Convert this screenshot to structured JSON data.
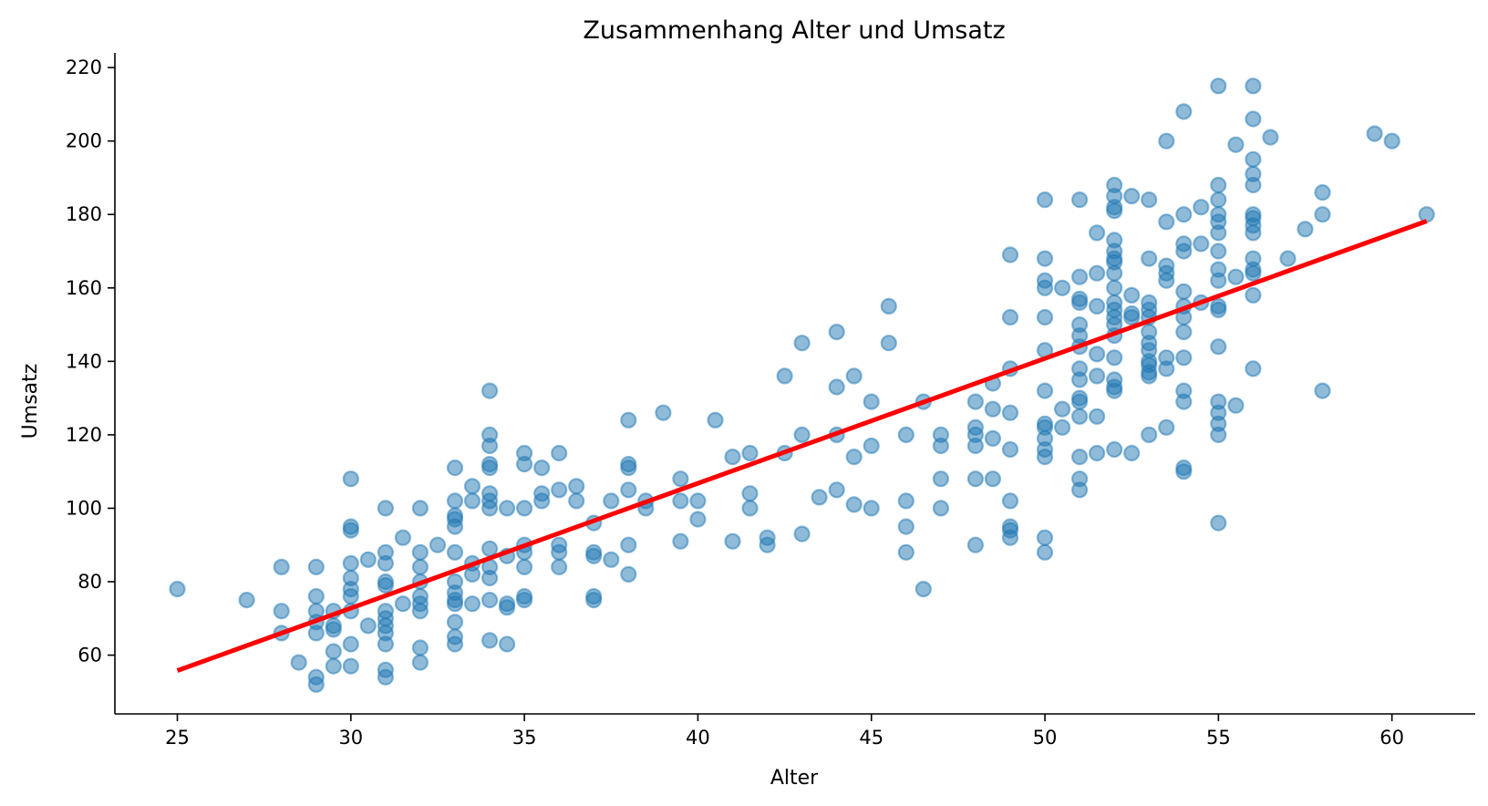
{
  "chart_data": {
    "type": "scatter",
    "title": "Zusammenhang Alter und Umsatz",
    "xlabel": "Alter",
    "ylabel": "Umsatz",
    "xlim": [
      23.2,
      62.4
    ],
    "ylim": [
      44,
      224
    ],
    "xticks": [
      25,
      30,
      35,
      40,
      45,
      50,
      55,
      60
    ],
    "yticks": [
      60,
      80,
      100,
      120,
      140,
      160,
      180,
      200,
      220
    ],
    "grid": false,
    "legend": "none",
    "colors": {
      "points": "#1f77b4",
      "line": "#ff0000"
    },
    "series": [
      {
        "kind": "scatter",
        "points": [
          [
            25,
            78
          ],
          [
            27,
            75
          ],
          [
            28,
            84
          ],
          [
            28,
            72
          ],
          [
            28,
            66
          ],
          [
            28.5,
            58
          ],
          [
            29,
            84
          ],
          [
            29,
            76
          ],
          [
            29,
            72
          ],
          [
            29,
            69
          ],
          [
            29,
            66
          ],
          [
            29,
            54
          ],
          [
            29,
            52
          ],
          [
            29.5,
            72
          ],
          [
            29.5,
            68
          ],
          [
            29.5,
            67
          ],
          [
            29.5,
            61
          ],
          [
            29.5,
            57
          ],
          [
            30,
            108
          ],
          [
            30,
            95
          ],
          [
            30,
            94
          ],
          [
            30,
            85
          ],
          [
            30,
            81
          ],
          [
            30,
            78
          ],
          [
            30,
            76
          ],
          [
            30,
            72
          ],
          [
            30,
            63
          ],
          [
            30,
            57
          ],
          [
            30.5,
            86
          ],
          [
            30.5,
            68
          ],
          [
            31,
            100
          ],
          [
            31,
            88
          ],
          [
            31,
            85
          ],
          [
            31,
            80
          ],
          [
            31,
            79
          ],
          [
            31,
            72
          ],
          [
            31,
            70
          ],
          [
            31,
            68
          ],
          [
            31,
            66
          ],
          [
            31,
            63
          ],
          [
            31,
            56
          ],
          [
            31,
            54
          ],
          [
            31.5,
            92
          ],
          [
            31.5,
            74
          ],
          [
            32,
            100
          ],
          [
            32,
            88
          ],
          [
            32,
            84
          ],
          [
            32,
            80
          ],
          [
            32,
            76
          ],
          [
            32,
            74
          ],
          [
            32,
            72
          ],
          [
            32,
            62
          ],
          [
            32,
            58
          ],
          [
            32.5,
            90
          ],
          [
            33,
            111
          ],
          [
            33,
            102
          ],
          [
            33,
            98
          ],
          [
            33,
            97
          ],
          [
            33,
            95
          ],
          [
            33,
            88
          ],
          [
            33,
            80
          ],
          [
            33,
            77
          ],
          [
            33,
            75
          ],
          [
            33,
            74
          ],
          [
            33,
            69
          ],
          [
            33,
            65
          ],
          [
            33,
            63
          ],
          [
            33.5,
            106
          ],
          [
            33.5,
            102
          ],
          [
            33.5,
            85
          ],
          [
            33.5,
            82
          ],
          [
            33.5,
            74
          ],
          [
            34,
            132
          ],
          [
            34,
            120
          ],
          [
            34,
            117
          ],
          [
            34,
            112
          ],
          [
            34,
            111
          ],
          [
            34,
            104
          ],
          [
            34,
            102
          ],
          [
            34,
            100
          ],
          [
            34,
            89
          ],
          [
            34,
            84
          ],
          [
            34,
            81
          ],
          [
            34,
            75
          ],
          [
            34,
            64
          ],
          [
            34.5,
            100
          ],
          [
            34.5,
            87
          ],
          [
            34.5,
            74
          ],
          [
            34.5,
            73
          ],
          [
            34.5,
            63
          ],
          [
            35,
            115
          ],
          [
            35,
            112
          ],
          [
            35,
            100
          ],
          [
            35,
            90
          ],
          [
            35,
            88
          ],
          [
            35,
            84
          ],
          [
            35,
            76
          ],
          [
            35,
            75
          ],
          [
            35.5,
            111
          ],
          [
            35.5,
            104
          ],
          [
            35.5,
            102
          ],
          [
            36,
            115
          ],
          [
            36,
            105
          ],
          [
            36,
            90
          ],
          [
            36,
            88
          ],
          [
            36,
            84
          ],
          [
            36.5,
            106
          ],
          [
            36.5,
            102
          ],
          [
            37,
            96
          ],
          [
            37,
            88
          ],
          [
            37,
            87
          ],
          [
            37,
            76
          ],
          [
            37,
            75
          ],
          [
            37.5,
            102
          ],
          [
            37.5,
            86
          ],
          [
            38,
            124
          ],
          [
            38,
            112
          ],
          [
            38,
            111
          ],
          [
            38,
            105
          ],
          [
            38,
            90
          ],
          [
            38,
            82
          ],
          [
            38.5,
            102
          ],
          [
            38.5,
            100
          ],
          [
            39,
            126
          ],
          [
            39.5,
            108
          ],
          [
            39.5,
            102
          ],
          [
            39.5,
            91
          ],
          [
            40,
            102
          ],
          [
            40,
            97
          ],
          [
            40.5,
            124
          ],
          [
            41,
            114
          ],
          [
            41,
            91
          ],
          [
            41.5,
            115
          ],
          [
            41.5,
            104
          ],
          [
            41.5,
            100
          ],
          [
            42,
            92
          ],
          [
            42,
            90
          ],
          [
            42.5,
            136
          ],
          [
            42.5,
            115
          ],
          [
            43,
            145
          ],
          [
            43,
            120
          ],
          [
            43,
            93
          ],
          [
            43.5,
            103
          ],
          [
            44,
            148
          ],
          [
            44,
            133
          ],
          [
            44,
            120
          ],
          [
            44,
            105
          ],
          [
            44.5,
            136
          ],
          [
            44.5,
            114
          ],
          [
            44.5,
            101
          ],
          [
            45,
            129
          ],
          [
            45,
            117
          ],
          [
            45,
            100
          ],
          [
            45.5,
            155
          ],
          [
            45.5,
            145
          ],
          [
            46,
            120
          ],
          [
            46,
            102
          ],
          [
            46,
            95
          ],
          [
            46,
            88
          ],
          [
            46.5,
            129
          ],
          [
            46.5,
            78
          ],
          [
            47,
            120
          ],
          [
            47,
            117
          ],
          [
            47,
            108
          ],
          [
            47,
            100
          ],
          [
            48,
            129
          ],
          [
            48,
            122
          ],
          [
            48,
            120
          ],
          [
            48,
            117
          ],
          [
            48,
            108
          ],
          [
            48,
            90
          ],
          [
            48.5,
            134
          ],
          [
            48.5,
            127
          ],
          [
            48.5,
            119
          ],
          [
            48.5,
            108
          ],
          [
            49,
            169
          ],
          [
            49,
            152
          ],
          [
            49,
            138
          ],
          [
            49,
            126
          ],
          [
            49,
            116
          ],
          [
            49,
            102
          ],
          [
            49,
            95
          ],
          [
            49,
            94
          ],
          [
            49,
            92
          ],
          [
            50,
            184
          ],
          [
            50,
            168
          ],
          [
            50,
            162
          ],
          [
            50,
            160
          ],
          [
            50,
            152
          ],
          [
            50,
            143
          ],
          [
            50,
            132
          ],
          [
            50,
            123
          ],
          [
            50,
            122
          ],
          [
            50,
            119
          ],
          [
            50,
            116
          ],
          [
            50,
            114
          ],
          [
            50,
            92
          ],
          [
            50,
            88
          ],
          [
            50.5,
            160
          ],
          [
            50.5,
            127
          ],
          [
            50.5,
            122
          ],
          [
            51,
            184
          ],
          [
            51,
            163
          ],
          [
            51,
            157
          ],
          [
            51,
            156
          ],
          [
            51,
            150
          ],
          [
            51,
            147
          ],
          [
            51,
            144
          ],
          [
            51,
            138
          ],
          [
            51,
            135
          ],
          [
            51,
            130
          ],
          [
            51,
            129
          ],
          [
            51,
            125
          ],
          [
            51,
            114
          ],
          [
            51,
            108
          ],
          [
            51,
            105
          ],
          [
            51.5,
            175
          ],
          [
            51.5,
            164
          ],
          [
            51.5,
            155
          ],
          [
            51.5,
            142
          ],
          [
            51.5,
            136
          ],
          [
            51.5,
            125
          ],
          [
            51.5,
            115
          ],
          [
            52,
            188
          ],
          [
            52,
            185
          ],
          [
            52,
            182
          ],
          [
            52,
            181
          ],
          [
            52,
            173
          ],
          [
            52,
            170
          ],
          [
            52,
            168
          ],
          [
            52,
            167
          ],
          [
            52,
            164
          ],
          [
            52,
            160
          ],
          [
            52,
            156
          ],
          [
            52,
            154
          ],
          [
            52,
            152
          ],
          [
            52,
            150
          ],
          [
            52,
            147
          ],
          [
            52,
            141
          ],
          [
            52,
            135
          ],
          [
            52,
            133
          ],
          [
            52,
            132
          ],
          [
            52,
            116
          ],
          [
            52.5,
            185
          ],
          [
            52.5,
            158
          ],
          [
            52.5,
            153
          ],
          [
            52.5,
            152
          ],
          [
            52.5,
            115
          ],
          [
            53,
            184
          ],
          [
            53,
            168
          ],
          [
            53,
            156
          ],
          [
            53,
            154
          ],
          [
            53,
            152
          ],
          [
            53,
            148
          ],
          [
            53,
            145
          ],
          [
            53,
            143
          ],
          [
            53,
            140
          ],
          [
            53,
            139
          ],
          [
            53,
            137
          ],
          [
            53,
            136
          ],
          [
            53,
            120
          ],
          [
            53.5,
            200
          ],
          [
            53.5,
            178
          ],
          [
            53.5,
            166
          ],
          [
            53.5,
            164
          ],
          [
            53.5,
            162
          ],
          [
            53.5,
            141
          ],
          [
            53.5,
            138
          ],
          [
            53.5,
            122
          ],
          [
            54,
            208
          ],
          [
            54,
            180
          ],
          [
            54,
            172
          ],
          [
            54,
            170
          ],
          [
            54,
            159
          ],
          [
            54,
            155
          ],
          [
            54,
            152
          ],
          [
            54,
            148
          ],
          [
            54,
            141
          ],
          [
            54,
            132
          ],
          [
            54,
            129
          ],
          [
            54,
            111
          ],
          [
            54,
            110
          ],
          [
            54.5,
            182
          ],
          [
            54.5,
            172
          ],
          [
            54.5,
            156
          ],
          [
            55,
            215
          ],
          [
            55,
            188
          ],
          [
            55,
            184
          ],
          [
            55,
            180
          ],
          [
            55,
            178
          ],
          [
            55,
            175
          ],
          [
            55,
            170
          ],
          [
            55,
            165
          ],
          [
            55,
            162
          ],
          [
            55,
            155
          ],
          [
            55,
            154
          ],
          [
            55,
            144
          ],
          [
            55,
            129
          ],
          [
            55,
            126
          ],
          [
            55,
            123
          ],
          [
            55,
            120
          ],
          [
            55,
            96
          ],
          [
            55.5,
            199
          ],
          [
            55.5,
            163
          ],
          [
            55.5,
            128
          ],
          [
            56,
            215
          ],
          [
            56,
            206
          ],
          [
            56,
            195
          ],
          [
            56,
            191
          ],
          [
            56,
            188
          ],
          [
            56,
            180
          ],
          [
            56,
            179
          ],
          [
            56,
            177
          ],
          [
            56,
            175
          ],
          [
            56,
            168
          ],
          [
            56,
            165
          ],
          [
            56,
            164
          ],
          [
            56,
            158
          ],
          [
            56,
            138
          ],
          [
            56.5,
            201
          ],
          [
            57,
            168
          ],
          [
            57.5,
            176
          ],
          [
            58,
            186
          ],
          [
            58,
            180
          ],
          [
            58,
            132
          ],
          [
            59.5,
            202
          ],
          [
            60,
            200
          ],
          [
            61,
            180
          ]
        ]
      },
      {
        "kind": "line",
        "points": [
          [
            25,
            55.8
          ],
          [
            61,
            178.2
          ]
        ]
      }
    ]
  }
}
